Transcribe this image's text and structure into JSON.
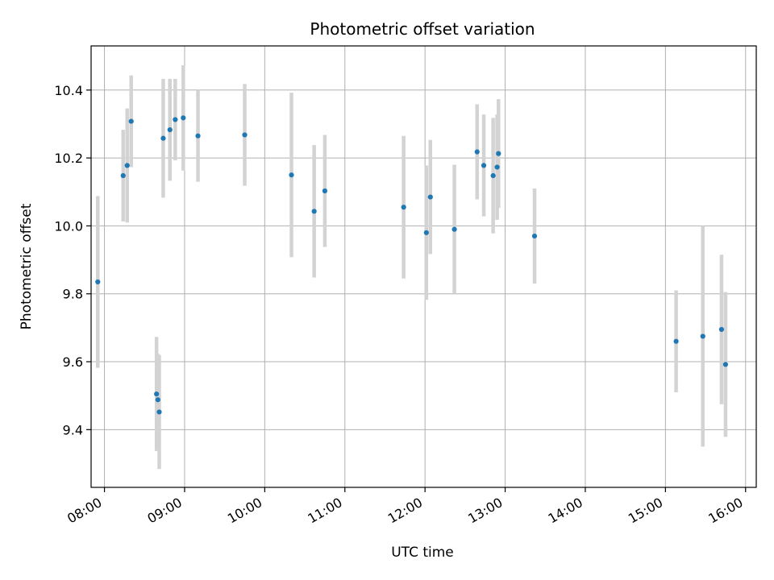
{
  "chart_data": {
    "type": "scatter",
    "title": "Photometric offset variation",
    "xlabel": "UTC time",
    "ylabel": "Photometric offset",
    "x_ticks": [
      "08:00",
      "09:00",
      "10:00",
      "11:00",
      "12:00",
      "13:00",
      "14:00",
      "15:00",
      "16:00"
    ],
    "y_ticks": [
      "9.4",
      "9.6",
      "9.8",
      "10.0",
      "10.2",
      "10.4"
    ],
    "xlim": [
      "07:50",
      "16:08"
    ],
    "ylim": [
      9.23,
      10.53
    ],
    "grid": true,
    "point_color": "#1f77b4",
    "errorbar_color": "#d3d3d3",
    "points": [
      {
        "time": "07:55",
        "y": 9.835,
        "err": 0.253
      },
      {
        "time": "08:14",
        "y": 10.148,
        "err": 0.135
      },
      {
        "time": "08:17",
        "y": 10.178,
        "err": 0.168
      },
      {
        "time": "08:20",
        "y": 10.308,
        "err": 0.135
      },
      {
        "time": "08:39",
        "y": 9.505,
        "err": 0.168
      },
      {
        "time": "08:40",
        "y": 9.488,
        "err": 0.135
      },
      {
        "time": "08:41",
        "y": 9.452,
        "err": 0.168
      },
      {
        "time": "08:44",
        "y": 10.258,
        "err": 0.175
      },
      {
        "time": "08:49",
        "y": 10.283,
        "err": 0.15
      },
      {
        "time": "08:53",
        "y": 10.313,
        "err": 0.12
      },
      {
        "time": "08:59",
        "y": 10.318,
        "err": 0.155
      },
      {
        "time": "09:10",
        "y": 10.265,
        "err": 0.135
      },
      {
        "time": "09:45",
        "y": 10.268,
        "err": 0.15
      },
      {
        "time": "10:20",
        "y": 10.15,
        "err": 0.242
      },
      {
        "time": "10:37",
        "y": 10.043,
        "err": 0.195
      },
      {
        "time": "10:45",
        "y": 10.103,
        "err": 0.165
      },
      {
        "time": "11:44",
        "y": 10.055,
        "err": 0.21
      },
      {
        "time": "12:01",
        "y": 9.98,
        "err": 0.198
      },
      {
        "time": "12:04",
        "y": 10.085,
        "err": 0.168
      },
      {
        "time": "12:22",
        "y": 9.99,
        "err": 0.19
      },
      {
        "time": "12:39",
        "y": 10.218,
        "err": 0.14
      },
      {
        "time": "12:44",
        "y": 10.178,
        "err": 0.15
      },
      {
        "time": "12:51",
        "y": 10.148,
        "err": 0.17
      },
      {
        "time": "12:54",
        "y": 10.173,
        "err": 0.155
      },
      {
        "time": "12:55",
        "y": 10.213,
        "err": 0.16
      },
      {
        "time": "13:22",
        "y": 9.97,
        "err": 0.14
      },
      {
        "time": "15:08",
        "y": 9.66,
        "err": 0.15
      },
      {
        "time": "15:28",
        "y": 9.675,
        "err": 0.325
      },
      {
        "time": "15:42",
        "y": 9.695,
        "err": 0.22
      },
      {
        "time": "15:45",
        "y": 9.592,
        "err": 0.213
      }
    ]
  }
}
